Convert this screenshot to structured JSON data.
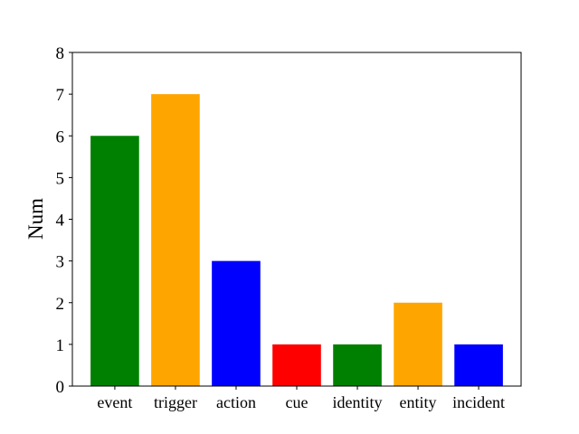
{
  "chart_data": {
    "type": "bar",
    "title": "",
    "xlabel": "",
    "ylabel": "Num",
    "categories": [
      "event",
      "trigger",
      "action",
      "cue",
      "identity",
      "entity",
      "incident"
    ],
    "values": [
      6,
      7,
      3,
      1,
      1,
      2,
      1
    ],
    "colors": [
      "#008000",
      "#ffa500",
      "#0000ff",
      "#ff0000",
      "#008000",
      "#ffa500",
      "#0000ff"
    ],
    "ylim": [
      0,
      8
    ],
    "yticks": [
      "0",
      "1",
      "2",
      "3",
      "4",
      "5",
      "6",
      "7",
      "8"
    ],
    "grid": false,
    "legend": "none"
  }
}
